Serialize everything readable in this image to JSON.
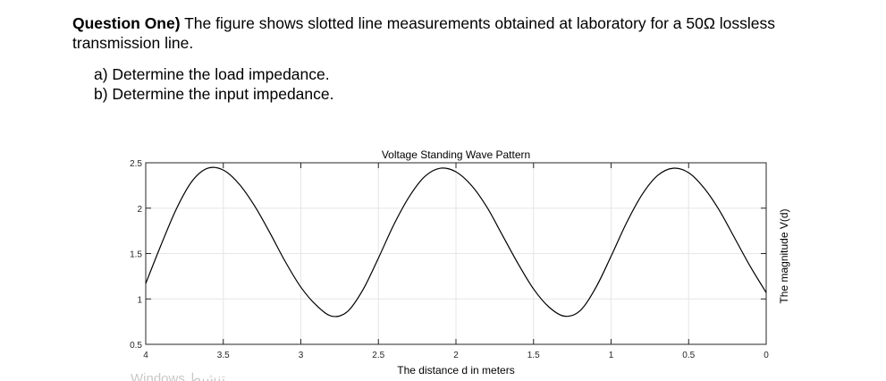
{
  "question": {
    "heading": "Question One)",
    "text_line1": " The figure shows slotted line measurements obtained at laboratory for a 50Ω lossless",
    "text_line2": "transmission line.",
    "part_a": "a) Determine the load impedance.",
    "part_b": "b) Determine the input impedance."
  },
  "watermark": "Windows تنشيط",
  "chart_data": {
    "type": "line",
    "title": "Voltage Standing Wave Pattern",
    "xlabel": "The distance d in meters",
    "ylabel": "The magnitude V(d)",
    "xlim": [
      4,
      0
    ],
    "ylim": [
      0.5,
      2.5
    ],
    "x_ticks": [
      "4",
      "3.5",
      "3",
      "2.5",
      "2",
      "1.5",
      "1",
      "0.5",
      "0"
    ],
    "y_ticks": [
      "0.5",
      "1",
      "1.5",
      "2",
      "2.5"
    ],
    "grid": true,
    "x_reversed": true,
    "y_axis_side": "left",
    "ylabel_side": "right",
    "series": [
      {
        "color": "#000000",
        "x": [
          4.0,
          3.9,
          3.8,
          3.7,
          3.6,
          3.5,
          3.4,
          3.3,
          3.2,
          3.1,
          3.0,
          2.9,
          2.8,
          2.7,
          2.6,
          2.5,
          2.4,
          2.3,
          2.2,
          2.1,
          2.0,
          1.9,
          1.8,
          1.7,
          1.6,
          1.5,
          1.4,
          1.3,
          1.2,
          1.1,
          1.0,
          0.9,
          0.8,
          0.7,
          0.6,
          0.5,
          0.4,
          0.3,
          0.2,
          0.1,
          0.0
        ],
        "y": [
          1.17,
          1.6,
          2.0,
          2.3,
          2.44,
          2.42,
          2.27,
          2.03,
          1.73,
          1.41,
          1.13,
          0.93,
          0.81,
          0.86,
          1.1,
          1.45,
          1.82,
          2.13,
          2.35,
          2.44,
          2.4,
          2.25,
          2.01,
          1.7,
          1.39,
          1.11,
          0.91,
          0.81,
          0.87,
          1.12,
          1.47,
          1.84,
          2.15,
          2.36,
          2.44,
          2.39,
          2.22,
          1.97,
          1.66,
          1.35,
          1.07
        ]
      }
    ]
  }
}
